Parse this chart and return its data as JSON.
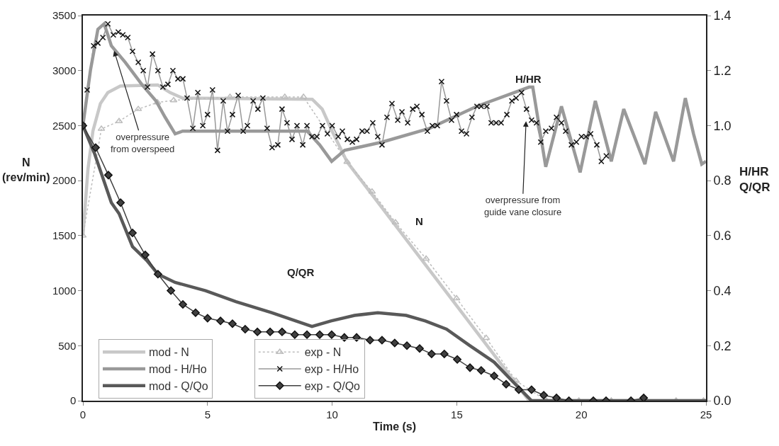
{
  "chart_data": {
    "type": "line",
    "xlabel": "Time (s)",
    "ylabel": "N\n(rev/min)",
    "y2label": "H/HR\nQ/QR",
    "xlim": [
      0,
      25
    ],
    "xticks": [
      0,
      5,
      10,
      15,
      20,
      25
    ],
    "ylim": [
      0,
      3500
    ],
    "yticks": [
      0,
      500,
      1000,
      1500,
      2000,
      2500,
      3000,
      3500
    ],
    "y2lim": [
      0,
      1.4
    ],
    "y2ticks": [
      {
        "value": 0,
        "label": "0.0"
      },
      {
        "value": 0.2,
        "label": "0.2"
      },
      {
        "value": 0.4,
        "label": "0.4"
      },
      {
        "value": 0.6,
        "label": "0.6"
      },
      {
        "value": 0.8,
        "label": "0.8"
      },
      {
        "value": 1.0,
        "label": "1.0"
      },
      {
        "value": 1.2,
        "label": "1.2"
      },
      {
        "value": 1.4,
        "label": "1.4"
      }
    ],
    "legend": "bottom left",
    "series": [
      {
        "name": "mod - N",
        "color": "#c8c8c8",
        "marker": "none",
        "x": [
          0,
          0.2,
          0.4,
          0.7,
          1.0,
          1.5,
          3.0,
          3.5,
          4.0,
          9.2,
          9.6,
          10.0,
          10.6,
          17.9,
          25
        ],
        "values": [
          1500,
          2100,
          2450,
          2700,
          2800,
          2860,
          2870,
          2800,
          2750,
          2740,
          2650,
          2450,
          2170,
          0,
          0
        ]
      },
      {
        "name": "exp - N",
        "color": "#bdbdbd",
        "marker": "triangle",
        "line_style": "dotted",
        "x": [
          0,
          0.74,
          1.45,
          2.22,
          2.99,
          3.64,
          5.9,
          8.1,
          8.85,
          10.6,
          11.6,
          12.54,
          13.77,
          14.99,
          16.18,
          17.38,
          18.6,
          19.9,
          21.2,
          22.5,
          23.8,
          24.9
        ],
        "values": [
          1500,
          2470,
          2540,
          2650,
          2710,
          2730,
          2760,
          2760,
          2760,
          2170,
          1900,
          1620,
          1290,
          930,
          570,
          180,
          0,
          0,
          0,
          0,
          0,
          0
        ]
      },
      {
        "name": "mod - H/Ho",
        "color": "#999999",
        "axis": "y2",
        "marker": "none",
        "x": [
          0,
          0.3,
          0.6,
          0.85,
          1.0,
          1.14,
          1.7,
          2.36,
          2.93,
          3.3,
          3.7,
          4.0,
          9.0,
          9.5,
          9.98,
          10.5,
          12.0,
          13.9,
          15.8,
          17.9,
          18.05,
          18.57,
          19.2,
          19.95,
          20.56,
          21.2,
          21.7,
          22.55,
          22.98,
          23.7,
          24.17,
          24.5,
          24.83,
          25
        ],
        "values": [
          1.0,
          1.2,
          1.35,
          1.37,
          1.33,
          1.29,
          1.23,
          1.15,
          1.09,
          1.03,
          0.97,
          0.98,
          0.98,
          0.93,
          0.87,
          0.91,
          0.94,
          0.99,
          1.07,
          1.14,
          1.14,
          0.85,
          1.07,
          0.83,
          1.09,
          0.87,
          1.06,
          0.86,
          1.05,
          0.87,
          1.1,
          0.97,
          0.86,
          0.87
        ]
      },
      {
        "name": "exp - H/Ho",
        "color": "#999999",
        "axis": "y2",
        "marker": "cross",
        "x": [
          0,
          0.17,
          0.43,
          0.6,
          0.8,
          1.0,
          1.22,
          1.42,
          1.6,
          1.8,
          1.99,
          2.22,
          2.42,
          2.59,
          2.79,
          3.01,
          3.21,
          3.41,
          3.61,
          3.81,
          4.01,
          4.18,
          4.41,
          4.61,
          4.81,
          5.0,
          5.2,
          5.4,
          5.63,
          5.8,
          6.0,
          6.23,
          6.43,
          6.6,
          6.83,
          7.02,
          7.22,
          7.39,
          7.59,
          7.82,
          7.99,
          8.19,
          8.39,
          8.59,
          8.82,
          8.99,
          9.19,
          9.39,
          9.61,
          9.81,
          10.0,
          10.24,
          10.41,
          10.61,
          10.81,
          10.98,
          11.2,
          11.4,
          11.63,
          11.83,
          12.0,
          12.2,
          12.4,
          12.63,
          12.8,
          13.03,
          13.23,
          13.4,
          13.6,
          13.82,
          14.02,
          14.22,
          14.39,
          14.59,
          14.79,
          14.99,
          15.19,
          15.39,
          15.61,
          15.81,
          15.98,
          16.21,
          16.38,
          16.58,
          16.78,
          17.01,
          17.21,
          17.38,
          17.6,
          17.8,
          18.0,
          18.2,
          18.37,
          18.57,
          18.8,
          19.0,
          19.2,
          19.37,
          19.6,
          19.8,
          20.0,
          20.19,
          20.37,
          20.62,
          20.8,
          21.0
        ],
        "values": [
          1.0,
          1.13,
          1.29,
          1.3,
          1.32,
          1.37,
          1.33,
          1.34,
          1.33,
          1.32,
          1.27,
          1.23,
          1.2,
          1.14,
          1.26,
          1.2,
          1.14,
          1.15,
          1.2,
          1.17,
          1.17,
          1.1,
          0.99,
          1.12,
          1.0,
          1.04,
          1.13,
          0.91,
          1.09,
          0.98,
          1.04,
          1.11,
          0.98,
          1.0,
          1.09,
          1.06,
          1.1,
          0.99,
          0.92,
          0.93,
          1.06,
          1.01,
          0.95,
          1.0,
          0.93,
          1.0,
          0.96,
          0.96,
          1.0,
          0.97,
          1.0,
          0.96,
          0.98,
          0.95,
          0.94,
          0.95,
          0.98,
          0.98,
          1.01,
          0.96,
          0.93,
          1.03,
          1.08,
          1.02,
          1.05,
          1.01,
          1.06,
          1.07,
          1.04,
          0.98,
          1.0,
          1.0,
          1.16,
          1.09,
          1.02,
          1.04,
          0.98,
          0.97,
          1.03,
          1.07,
          1.07,
          1.07,
          1.01,
          1.01,
          1.01,
          1.04,
          1.09,
          1.1,
          1.12,
          1.06,
          1.02,
          1.01,
          0.94,
          0.98,
          0.99,
          1.03,
          1.01,
          0.98,
          0.93,
          0.94,
          0.96,
          0.96,
          0.97,
          0.93,
          0.87,
          0.89
        ]
      },
      {
        "name": "mod - Q/Qo",
        "color": "#595959",
        "axis": "y2",
        "marker": "none",
        "x": [
          0,
          0.46,
          1.14,
          1.45,
          1.99,
          2.56,
          3.01,
          3.7,
          4.92,
          6.14,
          7.57,
          9.19,
          9.95,
          10.9,
          11.83,
          12.97,
          13.74,
          14.59,
          15.53,
          16.5,
          17.24,
          18.0,
          25
        ],
        "values": [
          1.0,
          0.9,
          0.72,
          0.68,
          0.56,
          0.51,
          0.46,
          0.43,
          0.4,
          0.36,
          0.32,
          0.27,
          0.29,
          0.31,
          0.32,
          0.31,
          0.29,
          0.26,
          0.2,
          0.14,
          0.07,
          0,
          0
        ]
      },
      {
        "name": "exp - Q/Qo",
        "color": "#404040",
        "axis": "y2",
        "marker": "diamond",
        "x": [
          0,
          0.51,
          1.02,
          1.51,
          1.99,
          2.5,
          3.01,
          3.53,
          4.01,
          4.52,
          5.0,
          5.52,
          6.0,
          6.51,
          7.0,
          7.51,
          7.99,
          8.5,
          8.99,
          9.5,
          9.98,
          10.49,
          10.98,
          11.52,
          12.0,
          12.51,
          13.0,
          13.51,
          13.99,
          14.5,
          15.02,
          15.53,
          15.98,
          16.5,
          16.98,
          17.49,
          18.0,
          18.49,
          19.0,
          19.5,
          20.48,
          20.99,
          21.99,
          22.5
        ],
        "values": [
          1.0,
          0.92,
          0.82,
          0.72,
          0.61,
          0.53,
          0.46,
          0.4,
          0.35,
          0.32,
          0.3,
          0.29,
          0.28,
          0.26,
          0.25,
          0.25,
          0.25,
          0.24,
          0.24,
          0.24,
          0.24,
          0.23,
          0.23,
          0.22,
          0.22,
          0.21,
          0.2,
          0.19,
          0.17,
          0.17,
          0.15,
          0.12,
          0.11,
          0.09,
          0.06,
          0.04,
          0.04,
          0.02,
          0.01,
          0,
          0,
          0,
          0,
          0.01
        ]
      }
    ],
    "annotations": [
      {
        "text": "overpressure\nfrom overspeed",
        "x": 1.25,
        "y": 3180
      },
      {
        "text": "overpressure from\nguide vane closure",
        "x": 17.78,
        "y": 2540
      },
      "H/HR",
      "N",
      "Q/QR"
    ]
  }
}
